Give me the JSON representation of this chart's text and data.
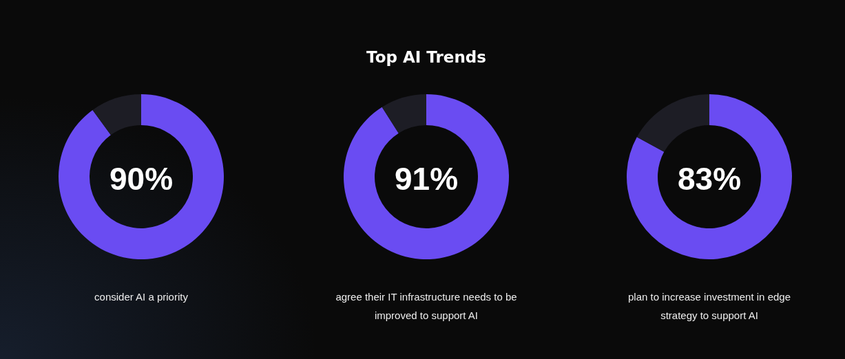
{
  "chart_data": [
    {
      "type": "donut",
      "categories": [
        null,
        null
      ],
      "values": [
        90,
        10
      ],
      "colors": [
        "#6a4cf2",
        "#1d1d25"
      ],
      "value_labels": [
        "90%",
        null
      ],
      "annotations": [
        "consider AI a priority"
      ]
    },
    {
      "type": "donut",
      "title": "Top AI Trends",
      "categories": [
        null,
        null
      ],
      "values": [
        91,
        9
      ],
      "colors": [
        "#6a4cf2",
        "#1d1d25"
      ],
      "value_labels": [
        "91%",
        null
      ],
      "annotations": [
        "agree their IT infrastructure needs to be improved to support AI"
      ]
    },
    {
      "type": "donut",
      "categories": [
        null,
        null
      ],
      "values": [
        83,
        17
      ],
      "colors": [
        "#6a4cf2",
        "#1d1d25"
      ],
      "value_labels": [
        "83%",
        null
      ],
      "annotations": [
        "plan to increase investment in edge strategy to support AI"
      ]
    }
  ]
}
